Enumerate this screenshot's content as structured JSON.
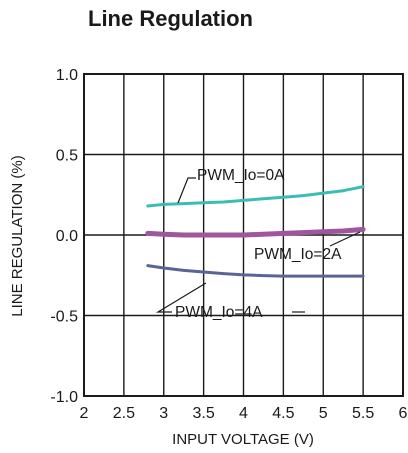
{
  "chart_data": {
    "type": "line",
    "title": "Line Regulation",
    "xlabel": "INPUT VOLTAGE (V)",
    "ylabel": "LINE REGULATION (%)",
    "xlim": [
      2,
      6
    ],
    "ylim": [
      -1.0,
      1.0
    ],
    "x_ticks": [
      "2",
      "2.5",
      "3",
      "3.5",
      "4",
      "4.5",
      "5",
      "5.5",
      "6"
    ],
    "y_ticks": [
      "1.0",
      "0.5",
      "0.0",
      "-0.5",
      "-1.0"
    ],
    "grid": true,
    "series": [
      {
        "name": "PWM_Io=0A",
        "color": "#3dbcb4",
        "x": [
          2.8,
          3.0,
          3.25,
          3.5,
          3.75,
          4.0,
          4.25,
          4.5,
          4.75,
          5.0,
          5.25,
          5.5
        ],
        "y": [
          0.18,
          0.19,
          0.195,
          0.2,
          0.205,
          0.215,
          0.225,
          0.235,
          0.245,
          0.26,
          0.275,
          0.3
        ]
      },
      {
        "name": "PWM_Io=2A",
        "color": "#a0569e",
        "x": [
          2.8,
          3.0,
          3.25,
          3.5,
          3.75,
          4.0,
          4.25,
          4.5,
          4.75,
          5.0,
          5.25,
          5.5
        ],
        "y": [
          0.01,
          0.005,
          0.0,
          0.0,
          0.0,
          0.0,
          0.005,
          0.01,
          0.015,
          0.02,
          0.025,
          0.035
        ]
      },
      {
        "name": "PWM_Io=4A",
        "color": "#5b6497",
        "x": [
          2.8,
          3.0,
          3.25,
          3.5,
          3.75,
          4.0,
          4.25,
          4.5,
          4.75,
          5.0,
          5.25,
          5.5
        ],
        "y": [
          -0.19,
          -0.205,
          -0.22,
          -0.23,
          -0.24,
          -0.248,
          -0.252,
          -0.255,
          -0.255,
          -0.255,
          -0.255,
          -0.255
        ]
      }
    ],
    "annotations": [
      {
        "text": "PWM_Io=0A",
        "series": "PWM_Io=0A"
      },
      {
        "text": "PWM_Io=2A",
        "series": "PWM_Io=2A"
      },
      {
        "text": "PWM_Io=4A",
        "series": "PWM_Io=4A"
      }
    ]
  }
}
